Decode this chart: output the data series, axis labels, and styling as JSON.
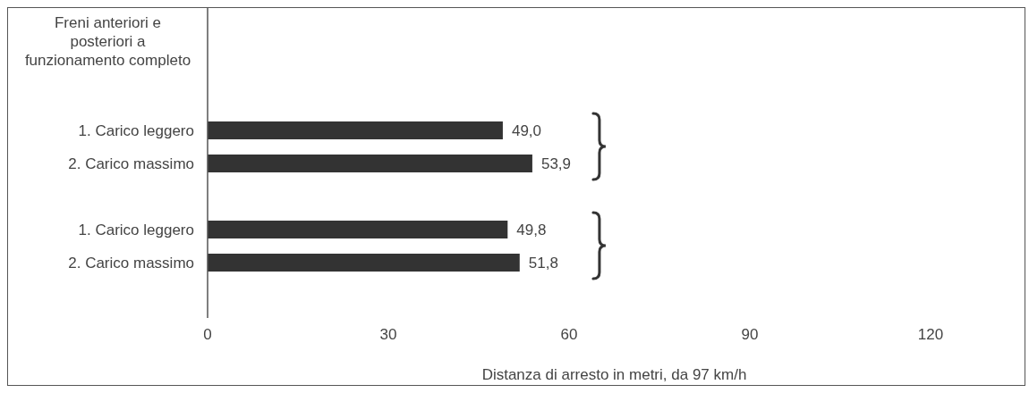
{
  "chart_data": {
    "type": "bar",
    "orientation": "horizontal",
    "title": "Freni anteriori e posteriori a funzionamento completo",
    "xlabel": "Distanza di arresto in metri, da 97 km/h",
    "categories": [
      "1. Carico leggero",
      "2. Carico massimo",
      null,
      "1. Carico leggero",
      "2. Carico massimo"
    ],
    "values": [
      49.0,
      53.9,
      null,
      49.8,
      51.8
    ],
    "value_labels": [
      "49,0",
      "53,9",
      null,
      "49,8",
      "51,8"
    ],
    "color": "#333333",
    "xlim": [
      0,
      135
    ],
    "xticks": [
      0,
      30,
      60,
      90,
      120
    ]
  }
}
